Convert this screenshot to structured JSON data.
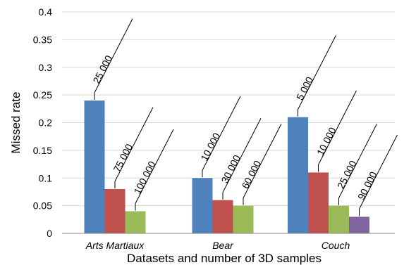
{
  "chart_data": {
    "type": "bar",
    "xlabel": "Datasets and number of 3D samples",
    "ylabel": "Missed rate",
    "ylim": [
      0,
      0.4
    ],
    "yticks": [
      "0",
      "0.05",
      "0.1",
      "0.15",
      "0.2",
      "0.25",
      "0.3",
      "0.35",
      "0.4"
    ],
    "grid": true,
    "series_colors": [
      "#4f81bd",
      "#c0504d",
      "#9bbb59",
      "#8064a2"
    ],
    "groups": [
      {
        "category": "Arts Martiaux",
        "bars": [
          {
            "label": "25 000",
            "value": 0.24
          },
          {
            "label": "75 000",
            "value": 0.08
          },
          {
            "label": "100 000",
            "value": 0.04
          }
        ]
      },
      {
        "category": "Bear",
        "bars": [
          {
            "label": "10 000",
            "value": 0.1
          },
          {
            "label": "30 000",
            "value": 0.06
          },
          {
            "label": "60 000",
            "value": 0.05
          }
        ]
      },
      {
        "category": "Couch",
        "bars": [
          {
            "label": "5 000",
            "value": 0.21
          },
          {
            "label": "10 000",
            "value": 0.11
          },
          {
            "label": "25 000",
            "value": 0.05
          },
          {
            "label": "90 000",
            "value": 0.03
          }
        ]
      }
    ]
  }
}
